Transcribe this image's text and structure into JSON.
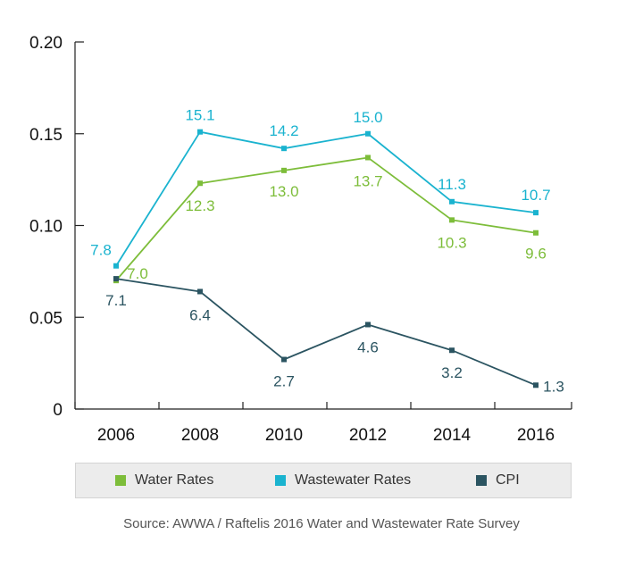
{
  "chart_data": {
    "type": "line",
    "categories": [
      "2006",
      "2008",
      "2010",
      "2012",
      "2014",
      "2016"
    ],
    "y_ticks": [
      "0.20",
      "0.15",
      "0.10",
      "0.05",
      "0"
    ],
    "ylim": [
      0,
      0.2
    ],
    "grid": false,
    "series": [
      {
        "name": "Water Rates",
        "color": "#7dbd3a",
        "values": [
          0.07,
          0.123,
          0.13,
          0.137,
          0.103,
          0.096
        ],
        "labels": [
          "7.0",
          "12.3",
          "13.0",
          "13.7",
          "10.3",
          "9.6"
        ]
      },
      {
        "name": "Wastewater Rates",
        "color": "#1ab3cf",
        "values": [
          0.078,
          0.151,
          0.142,
          0.15,
          0.113,
          0.107
        ],
        "labels": [
          "7.8",
          "15.1",
          "14.2",
          "15.0",
          "11.3",
          "10.7"
        ]
      },
      {
        "name": "CPI",
        "color": "#2b5461",
        "values": [
          0.071,
          0.064,
          0.027,
          0.046,
          0.032,
          0.013
        ],
        "labels": [
          "7.1",
          "6.4",
          "2.7",
          "4.6",
          "3.2",
          "1.3"
        ]
      }
    ],
    "legend_position": "bottom"
  },
  "source": "Source: AWWA / Raftelis 2016 Water and Wastewater Rate Survey"
}
